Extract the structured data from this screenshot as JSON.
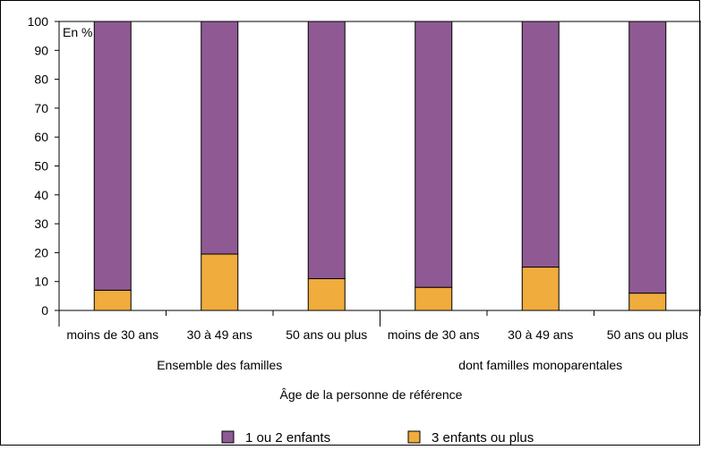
{
  "chart_data": {
    "type": "bar",
    "stacked": true,
    "unit_label": "En %",
    "ylim": [
      0,
      100
    ],
    "yticks": [
      0,
      10,
      20,
      30,
      40,
      50,
      60,
      70,
      80,
      90,
      100
    ],
    "xlabel": "Âge de la personne de référence",
    "groups": [
      {
        "label": "Ensemble des familles",
        "categories": [
          "moins de 30 ans",
          "30 à 49 ans",
          "50 ans ou plus"
        ]
      },
      {
        "label": "dont familles monoparentales",
        "categories": [
          "moins de 30 ans",
          "30 à 49 ans",
          "50 ans ou plus"
        ]
      }
    ],
    "categories": [
      "moins de 30 ans",
      "30 à 49 ans",
      "50 ans ou plus",
      "moins de 30 ans",
      "30 à 49 ans",
      "50 ans ou plus"
    ],
    "series": [
      {
        "name": "1 ou 2 enfants",
        "color": "#8F5A94",
        "values": [
          93,
          80.5,
          89,
          92,
          85,
          94
        ]
      },
      {
        "name": "3 enfants ou plus",
        "color": "#F0AC3C",
        "values": [
          7,
          19.5,
          11,
          8,
          15,
          6
        ]
      }
    ],
    "legend_position": "bottom",
    "grid": false
  }
}
